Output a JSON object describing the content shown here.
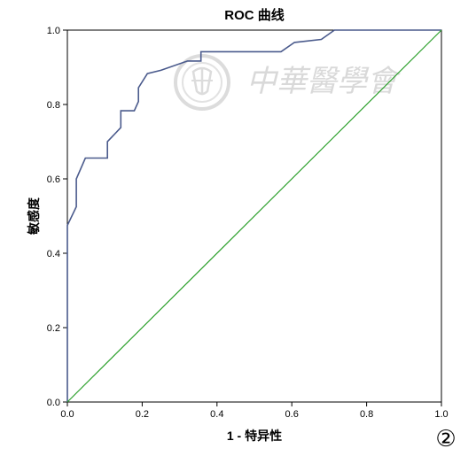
{
  "panel_label": "②",
  "watermark": {
    "text": "中華醫學會",
    "icon": "society-seal-icon"
  },
  "colors": {
    "roc_curve": "#4a5a8c",
    "reference_line": "#2ca02c",
    "axis": "#000000",
    "watermark": "#d9d9d9"
  },
  "chart_data": {
    "type": "line",
    "title": "ROC 曲线",
    "xlabel": "1 - 特异性",
    "ylabel": "敏感度",
    "xlim": [
      0,
      1
    ],
    "ylim": [
      0,
      1
    ],
    "grid": false,
    "legend": "none",
    "x_ticks": [
      "0.0",
      "0.2",
      "0.4",
      "0.6",
      "0.8",
      "1.0"
    ],
    "y_ticks": [
      "0.0",
      "0.2",
      "0.4",
      "0.6",
      "0.8",
      "1.0"
    ],
    "series": [
      {
        "kind": "roc",
        "x": [
          0.0,
          0.0,
          0.024,
          0.024,
          0.048,
          0.048,
          0.107,
          0.107,
          0.143,
          0.143,
          0.179,
          0.19,
          0.19,
          0.214,
          0.25,
          0.321,
          0.357,
          0.357,
          0.571,
          0.607,
          0.679,
          0.714,
          1.0
        ],
        "y": [
          0.0,
          0.475,
          0.525,
          0.6,
          0.656,
          0.656,
          0.656,
          0.7,
          0.738,
          0.783,
          0.783,
          0.808,
          0.845,
          0.883,
          0.892,
          0.917,
          0.917,
          0.942,
          0.942,
          0.967,
          0.975,
          1.0,
          1.0
        ]
      },
      {
        "kind": "reference",
        "x": [
          0,
          1
        ],
        "y": [
          0,
          1
        ]
      }
    ]
  }
}
